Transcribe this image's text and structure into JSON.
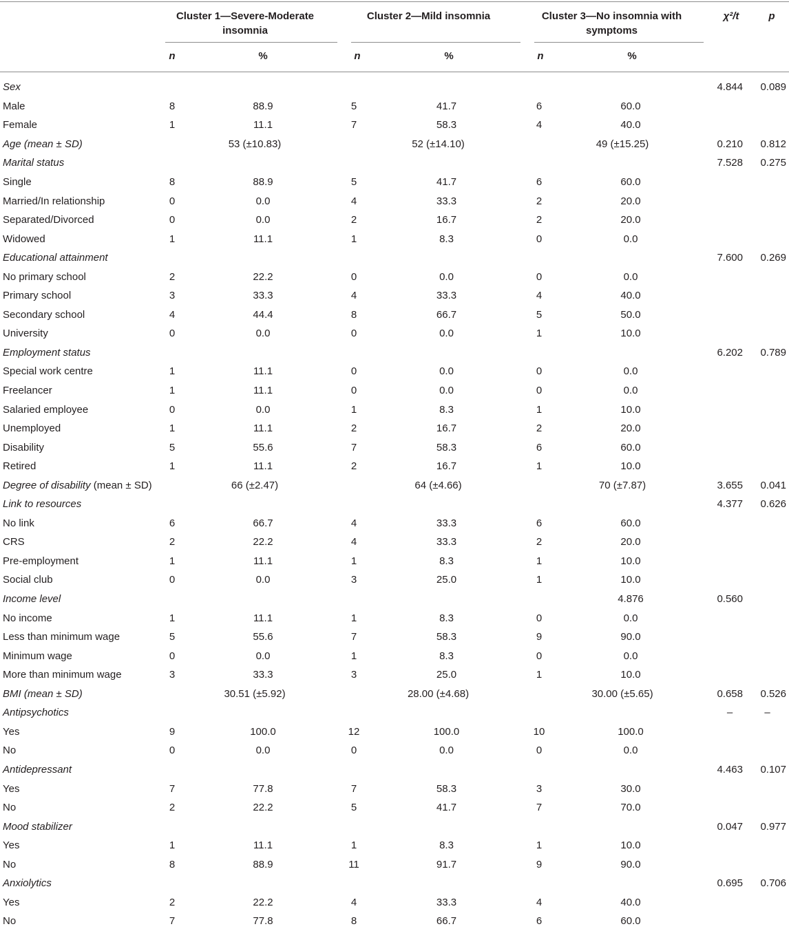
{
  "header": {
    "cluster1": "Cluster 1—Severe-Moderate insomnia",
    "cluster2": "Cluster 2—Mild insomnia",
    "cluster3": "Cluster 3—No insomnia with symptoms",
    "stat": "χ²/t",
    "p": "p",
    "n": "n",
    "pct": "%"
  },
  "rows": [
    {
      "label": "Sex",
      "italic": true,
      "chi": "4.844",
      "p": "0.089"
    },
    {
      "label": "Male",
      "n1": "8",
      "p1": "88.9",
      "n2": "5",
      "p2": "41.7",
      "n3": "6",
      "p3": "60.0"
    },
    {
      "label": "Female",
      "n1": "1",
      "p1": "11.1",
      "n2": "7",
      "p2": "58.3",
      "n3": "4",
      "p3": "40.0"
    },
    {
      "label": "Age (mean ± SD)",
      "italic": true,
      "m1": "53 (±10.83)",
      "m2": "52 (±14.10)",
      "m3": "49 (±15.25)",
      "chi": "0.210",
      "p": "0.812"
    },
    {
      "label": "Marital status",
      "italic": true,
      "chi": "7.528",
      "p": "0.275"
    },
    {
      "label": "Single",
      "n1": "8",
      "p1": "88.9",
      "n2": "5",
      "p2": "41.7",
      "n3": "6",
      "p3": "60.0"
    },
    {
      "label": "Married/In relationship",
      "n1": "0",
      "p1": "0.0",
      "n2": "4",
      "p2": "33.3",
      "n3": "2",
      "p3": "20.0"
    },
    {
      "label": "Separated/Divorced",
      "n1": "0",
      "p1": "0.0",
      "n2": "2",
      "p2": "16.7",
      "n3": "2",
      "p3": "20.0"
    },
    {
      "label": "Widowed",
      "n1": "1",
      "p1": "11.1",
      "n2": "1",
      "p2": "8.3",
      "n3": "0",
      "p3": "0.0"
    },
    {
      "label": "Educational attainment",
      "italic": true,
      "chi": "7.600",
      "p": "0.269"
    },
    {
      "label": "No primary school",
      "n1": "2",
      "p1": "22.2",
      "n2": "0",
      "p2": "0.0",
      "n3": "0",
      "p3": "0.0"
    },
    {
      "label": "Primary school",
      "n1": "3",
      "p1": "33.3",
      "n2": "4",
      "p2": "33.3",
      "n3": "4",
      "p3": "40.0"
    },
    {
      "label": "Secondary school",
      "n1": "4",
      "p1": "44.4",
      "n2": "8",
      "p2": "66.7",
      "n3": "5",
      "p3": "50.0"
    },
    {
      "label": "University",
      "n1": "0",
      "p1": "0.0",
      "n2": "0",
      "p2": "0.0",
      "n3": "1",
      "p3": "10.0"
    },
    {
      "label": "Employment status",
      "italic": true,
      "chi": "6.202",
      "p": "0.789"
    },
    {
      "label": "Special work centre",
      "n1": "1",
      "p1": "11.1",
      "n2": "0",
      "p2": "0.0",
      "n3": "0",
      "p3": "0.0"
    },
    {
      "label": "Freelancer",
      "n1": "1",
      "p1": "11.1",
      "n2": "0",
      "p2": "0.0",
      "n3": "0",
      "p3": "0.0"
    },
    {
      "label": "Salaried employee",
      "n1": "0",
      "p1": "0.0",
      "n2": "1",
      "p2": "8.3",
      "n3": "1",
      "p3": "10.0"
    },
    {
      "label": "Unemployed",
      "n1": "1",
      "p1": "11.1",
      "n2": "2",
      "p2": "16.7",
      "n3": "2",
      "p3": "20.0"
    },
    {
      "label": "Disability",
      "n1": "5",
      "p1": "55.6",
      "n2": "7",
      "p2": "58.3",
      "n3": "6",
      "p3": "60.0"
    },
    {
      "label": "Retired",
      "n1": "1",
      "p1": "11.1",
      "n2": "2",
      "p2": "16.7",
      "n3": "1",
      "p3": "10.0"
    },
    {
      "label": "Degree of disability",
      "label_suffix": " (mean ± SD)",
      "italic": true,
      "m1": "66 (±2.47)",
      "m2": "64 (±4.66)",
      "m3": "70 (±7.87)",
      "chi": "3.655",
      "p": "0.041"
    },
    {
      "label": "Link to resources",
      "italic": true,
      "chi": "4.377",
      "p": "0.626"
    },
    {
      "label": "No link",
      "n1": "6",
      "p1": "66.7",
      "n2": "4",
      "p2": "33.3",
      "n3": "6",
      "p3": "60.0"
    },
    {
      "label": "CRS",
      "n1": "2",
      "p1": "22.2",
      "n2": "4",
      "p2": "33.3",
      "n3": "2",
      "p3": "20.0"
    },
    {
      "label": "Pre-employment",
      "n1": "1",
      "p1": "11.1",
      "n2": "1",
      "p2": "8.3",
      "n3": "1",
      "p3": "10.0"
    },
    {
      "label": "Social club",
      "n1": "0",
      "p1": "0.0",
      "n2": "3",
      "p2": "25.0",
      "n3": "1",
      "p3": "10.0"
    },
    {
      "label": "Income level",
      "italic": true,
      "p3": "4.876",
      "chi": "0.560"
    },
    {
      "label": "No income",
      "n1": "1",
      "p1": "11.1",
      "n2": "1",
      "p2": "8.3",
      "n3": "0",
      "p3": "0.0"
    },
    {
      "label": "Less than minimum wage",
      "n1": "5",
      "p1": "55.6",
      "n2": "7",
      "p2": "58.3",
      "n3": "9",
      "p3": "90.0"
    },
    {
      "label": "Minimum wage",
      "n1": "0",
      "p1": "0.0",
      "n2": "1",
      "p2": "8.3",
      "n3": "0",
      "p3": "0.0"
    },
    {
      "label": "More than minimum wage",
      "n1": "3",
      "p1": "33.3",
      "n2": "3",
      "p2": "25.0",
      "n3": "1",
      "p3": "10.0"
    },
    {
      "label": "BMI (mean ± SD)",
      "italic": true,
      "m1": "30.51 (±5.92)",
      "m2": "28.00 (±4.68)",
      "m3": "30.00 (±5.65)",
      "chi": "0.658",
      "p": "0.526"
    },
    {
      "label": "Antipsychotics",
      "italic": true,
      "chi": "–",
      "p": "–",
      "dash": true
    },
    {
      "label": "Yes",
      "n1": "9",
      "p1": "100.0",
      "n2": "12",
      "p2": "100.0",
      "n3": "10",
      "p3": "100.0"
    },
    {
      "label": "No",
      "n1": "0",
      "p1": "0.0",
      "n2": "0",
      "p2": "0.0",
      "n3": "0",
      "p3": "0.0"
    },
    {
      "label": "Antidepressant",
      "italic": true,
      "chi": "4.463",
      "p": "0.107"
    },
    {
      "label": "Yes",
      "n1": "7",
      "p1": "77.8",
      "n2": "7",
      "p2": "58.3",
      "n3": "3",
      "p3": "30.0"
    },
    {
      "label": "No",
      "n1": "2",
      "p1": "22.2",
      "n2": "5",
      "p2": "41.7",
      "n3": "7",
      "p3": "70.0"
    },
    {
      "label": "Mood stabilizer",
      "italic": true,
      "chi": "0.047",
      "p": "0.977"
    },
    {
      "label": "Yes",
      "n1": "1",
      "p1": "11.1",
      "n2": "1",
      "p2": "8.3",
      "n3": "1",
      "p3": "10.0"
    },
    {
      "label": "No",
      "n1": "8",
      "p1": "88.9",
      "n2": "11",
      "p2": "91.7",
      "n3": "9",
      "p3": "90.0"
    },
    {
      "label": "Anxiolytics",
      "italic": true,
      "chi": "0.695",
      "p": "0.706"
    },
    {
      "label": "Yes",
      "n1": "2",
      "p1": "22.2",
      "n2": "4",
      "p2": "33.3",
      "n3": "4",
      "p3": "40.0"
    },
    {
      "label": "No",
      "n1": "7",
      "p1": "77.8",
      "n2": "8",
      "p2": "66.7",
      "n3": "6",
      "p3": "60.0"
    }
  ]
}
